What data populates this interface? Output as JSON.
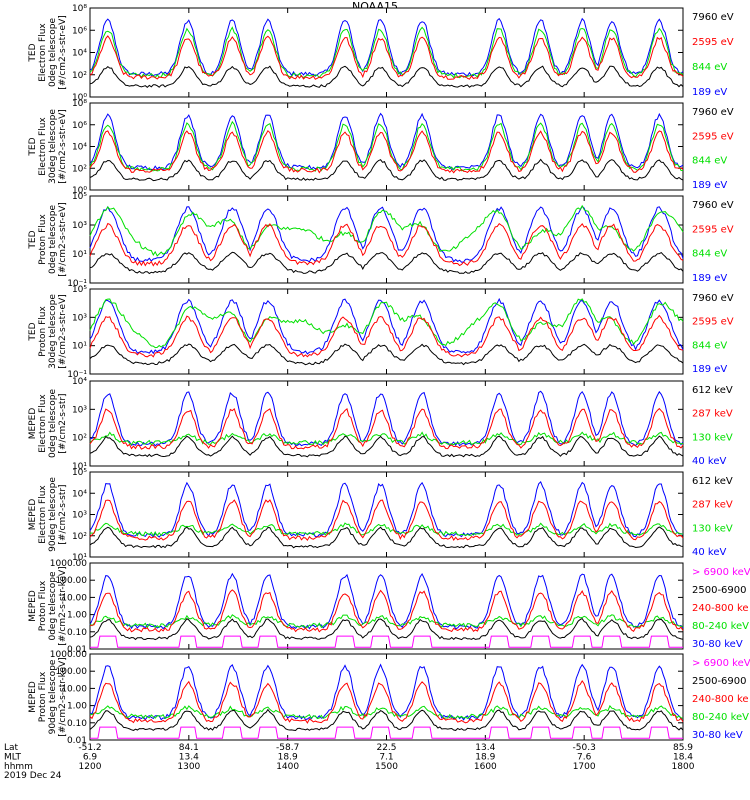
{
  "title": "NOAA15",
  "colors": {
    "blue": "#0000ff",
    "red": "#ff0000",
    "green": "#00e000",
    "black": "#000000",
    "magenta": "#ff00ff"
  },
  "chart_data": {
    "type": "line",
    "x_axis": {
      "unit": "hhmm",
      "ticks": [
        "1200",
        "1300",
        "1400",
        "1500",
        "1600",
        "1700",
        "1800"
      ],
      "xlim": [
        "1200",
        "1800"
      ],
      "rows": [
        {
          "label": "Lat",
          "values": [
            "-51.2",
            "84.1",
            "-58.7",
            "22.5",
            "13.4",
            "-50.3",
            "85.9"
          ]
        },
        {
          "label": "MLT",
          "values": [
            "6.9",
            "13.4",
            "18.9",
            "7.1",
            "18.9",
            "7.6",
            "18.4"
          ]
        },
        {
          "label": "hhmm",
          "values": [
            "1200",
            "1300",
            "1400",
            "1500",
            "1600",
            "1700",
            "1800"
          ]
        }
      ],
      "date": "2019 Dec 24"
    },
    "panels": [
      {
        "ylabel": [
          "TED",
          "Electron Flux",
          "0deg telescope",
          "[#/cm2-s-str-eV]"
        ],
        "scale": "log",
        "yticks": [
          "10⁰",
          "10²",
          "10⁴",
          "10⁶",
          "10⁸"
        ],
        "series": [
          {
            "name": "7960 eV",
            "color": "#000000"
          },
          {
            "name": "2595 eV",
            "color": "#ff0000"
          },
          {
            "name": "844 eV",
            "color": "#00e000"
          },
          {
            "name": "189 eV",
            "color": "#0000ff"
          }
        ]
      },
      {
        "ylabel": [
          "TED",
          "Electron Flux",
          "30deg telescope",
          "[#/cm2-s-str-eV]"
        ],
        "scale": "log",
        "yticks": [
          "10⁰",
          "10²",
          "10⁴",
          "10⁶",
          "10⁸"
        ],
        "series": [
          {
            "name": "7960 eV",
            "color": "#000000"
          },
          {
            "name": "2595 eV",
            "color": "#ff0000"
          },
          {
            "name": "844 eV",
            "color": "#00e000"
          },
          {
            "name": "189 eV",
            "color": "#0000ff"
          }
        ]
      },
      {
        "ylabel": [
          "TED",
          "Proton Flux",
          "0deg telescope",
          "[#/cm2-s-str-eV]"
        ],
        "scale": "log",
        "yticks": [
          "10⁻¹",
          "10¹",
          "10³",
          "10⁵"
        ],
        "series": [
          {
            "name": "7960 eV",
            "color": "#000000"
          },
          {
            "name": "2595 eV",
            "color": "#ff0000"
          },
          {
            "name": "844 eV",
            "color": "#00e000"
          },
          {
            "name": "189 eV",
            "color": "#0000ff"
          }
        ]
      },
      {
        "ylabel": [
          "TED",
          "Proton Flux",
          "30deg telescope",
          "[#/cm2-s-str-eV]"
        ],
        "scale": "log",
        "yticks": [
          "10⁻¹",
          "10¹",
          "10³",
          "10⁵"
        ],
        "series": [
          {
            "name": "7960 eV",
            "color": "#000000"
          },
          {
            "name": "2595 eV",
            "color": "#ff0000"
          },
          {
            "name": "844 eV",
            "color": "#00e000"
          },
          {
            "name": "189 eV",
            "color": "#0000ff"
          }
        ]
      },
      {
        "ylabel": [
          "MEPED",
          "Electron Flux",
          "0deg telescope",
          "[#/cm2-s-str]"
        ],
        "scale": "log",
        "yticks": [
          "10¹",
          "10²",
          "10³",
          "10⁴"
        ],
        "series": [
          {
            "name": "612 keV",
            "color": "#000000"
          },
          {
            "name": "287 keV",
            "color": "#ff0000"
          },
          {
            "name": "130 keV",
            "color": "#00e000"
          },
          {
            "name": "40 keV",
            "color": "#0000ff"
          }
        ]
      },
      {
        "ylabel": [
          "MEPED",
          "Electron Flux",
          "90deg telescope",
          "[#/cm2-s-str]"
        ],
        "scale": "log",
        "yticks": [
          "10¹",
          "10²",
          "10³",
          "10⁴",
          "10⁵"
        ],
        "series": [
          {
            "name": "612 keV",
            "color": "#000000"
          },
          {
            "name": "287 keV",
            "color": "#ff0000"
          },
          {
            "name": "130 keV",
            "color": "#00e000"
          },
          {
            "name": "40 keV",
            "color": "#0000ff"
          }
        ]
      },
      {
        "ylabel": [
          "MEPED",
          "Proton Flux",
          "0deg telescope",
          "[#/cm2-s-str-keV]"
        ],
        "scale": "log",
        "yticks": [
          "0.01",
          "0.10",
          "1.00",
          "10.00",
          "100.00",
          "1000.00"
        ],
        "series": [
          {
            "name": "> 6900 keV",
            "color": "#ff00ff"
          },
          {
            "name": "2500-6900",
            "color": "#000000"
          },
          {
            "name": "240-800 ke",
            "color": "#ff0000"
          },
          {
            "name": "80-240 keV",
            "color": "#00e000"
          },
          {
            "name": "30-80 keV",
            "color": "#0000ff"
          }
        ]
      },
      {
        "ylabel": [
          "MEPED",
          "Proton Flux",
          "90deg telescope",
          "[#/cm2-s-str-keV]"
        ],
        "scale": "log",
        "yticks": [
          "0.01",
          "0.10",
          "1.00",
          "10.00",
          "100.00",
          "1000.00"
        ],
        "series": [
          {
            "name": "> 6900 keV",
            "color": "#ff00ff"
          },
          {
            "name": "2500-6900",
            "color": "#000000"
          },
          {
            "name": "240-800 ke",
            "color": "#ff0000"
          },
          {
            "name": "80-240 keV",
            "color": "#00e000"
          },
          {
            "name": "30-80 keV",
            "color": "#0000ff"
          }
        ]
      }
    ]
  }
}
